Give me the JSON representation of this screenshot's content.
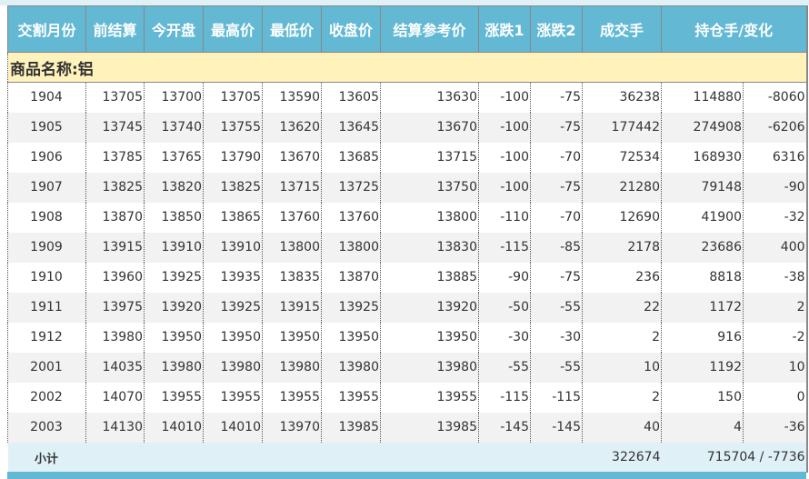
{
  "headers": [
    "交割月份",
    "前结算",
    "今开盘",
    "最高价",
    "最低价",
    "收盘价",
    "结算参考价",
    "涨跌1",
    "涨跌2",
    "成交手",
    "持仓手/变化"
  ],
  "category": "商品名称:铝",
  "rows": [
    [
      "1904",
      "13705",
      "13700",
      "13705",
      "13590",
      "13605",
      "13630",
      "-100",
      "-75",
      "36238",
      "114880",
      "-8060"
    ],
    [
      "1905",
      "13745",
      "13740",
      "13755",
      "13620",
      "13645",
      "13670",
      "-100",
      "-75",
      "177442",
      "274908",
      "-6206"
    ],
    [
      "1906",
      "13785",
      "13765",
      "13790",
      "13670",
      "13685",
      "13715",
      "-100",
      "-70",
      "72534",
      "168930",
      "6316"
    ],
    [
      "1907",
      "13825",
      "13820",
      "13825",
      "13715",
      "13725",
      "13750",
      "-100",
      "-75",
      "21280",
      "79148",
      "-90"
    ],
    [
      "1908",
      "13870",
      "13850",
      "13865",
      "13760",
      "13760",
      "13800",
      "-110",
      "-70",
      "12690",
      "41900",
      "-32"
    ],
    [
      "1909",
      "13915",
      "13910",
      "13910",
      "13800",
      "13800",
      "13830",
      "-115",
      "-85",
      "2178",
      "23686",
      "400"
    ],
    [
      "1910",
      "13960",
      "13925",
      "13935",
      "13835",
      "13870",
      "13885",
      "-90",
      "-75",
      "236",
      "8818",
      "-38"
    ],
    [
      "1911",
      "13975",
      "13920",
      "13925",
      "13915",
      "13925",
      "13920",
      "-50",
      "-55",
      "22",
      "1172",
      "2"
    ],
    [
      "1912",
      "13980",
      "13950",
      "13950",
      "13950",
      "13950",
      "13950",
      "-30",
      "-30",
      "2",
      "916",
      "-2"
    ],
    [
      "2001",
      "14035",
      "13980",
      "13980",
      "13980",
      "13980",
      "13980",
      "-55",
      "-55",
      "10",
      "1192",
      "10"
    ],
    [
      "2002",
      "14070",
      "13955",
      "13955",
      "13955",
      "13955",
      "13955",
      "-115",
      "-115",
      "2",
      "150",
      "0"
    ],
    [
      "2003",
      "14130",
      "14010",
      "14010",
      "13970",
      "13985",
      "13985",
      "-145",
      "-145",
      "40",
      "4",
      "-36"
    ]
  ],
  "subtotal": {
    "label": "小计",
    "volume": "322674",
    "open_interest": "715704 / -7736"
  }
}
